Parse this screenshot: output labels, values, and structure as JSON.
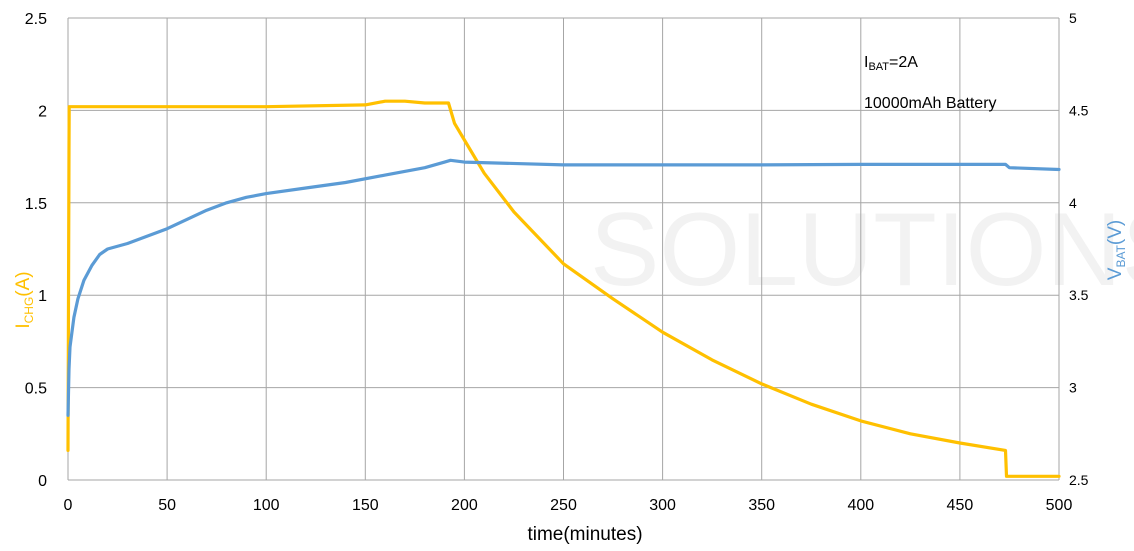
{
  "chart_data": {
    "type": "line",
    "title": "",
    "xlabel": "time(minutes)",
    "xlim": [
      0,
      500
    ],
    "x_ticks": [
      "0",
      "50",
      "100",
      "150",
      "200",
      "250",
      "300",
      "350",
      "400",
      "450",
      "500"
    ],
    "y_left": {
      "label_main": "I",
      "label_sub": "CHG",
      "label_unit": "(A)",
      "color": "#ffc000",
      "lim": [
        0,
        2.5
      ],
      "ticks": [
        "0",
        "0.5",
        "1",
        "1.5",
        "2",
        "2.5"
      ]
    },
    "y_right": {
      "label_main": "V",
      "label_sub": "BAT",
      "label_unit": "(V)",
      "color": "#5b9bd5",
      "lim": [
        2.5,
        5
      ],
      "ticks": [
        "2.5",
        "3",
        "3.5",
        "4",
        "4.5",
        "5"
      ]
    },
    "grid": true,
    "annotations": {
      "line1_main": "I",
      "line1_sub": "BAT",
      "line1_rest": "=2A",
      "line2": "10000mAh Battery"
    },
    "watermark": {
      "text": "SOLUTIONS"
    },
    "series": [
      {
        "axis": "left",
        "color": "#ffc000",
        "x": [
          0,
          0.5,
          0.6,
          1,
          10,
          50,
          100,
          150,
          160,
          170,
          180,
          192,
          195,
          200,
          210,
          225,
          250,
          275,
          300,
          325,
          350,
          375,
          400,
          425,
          450,
          473,
          473.5,
          500
        ],
        "y": [
          0.16,
          1.8,
          2.02,
          2.02,
          2.02,
          2.02,
          2.02,
          2.03,
          2.05,
          2.05,
          2.04,
          2.04,
          1.93,
          1.84,
          1.66,
          1.45,
          1.17,
          0.98,
          0.8,
          0.65,
          0.52,
          0.41,
          0.32,
          0.25,
          0.2,
          0.16,
          0.02,
          0.02
        ]
      },
      {
        "axis": "right",
        "color": "#5b9bd5",
        "x": [
          0,
          0.5,
          1,
          3,
          5,
          8,
          12,
          16,
          20,
          30,
          40,
          50,
          60,
          70,
          80,
          90,
          100,
          120,
          140,
          160,
          180,
          190,
          193,
          200,
          250,
          300,
          350,
          400,
          450,
          473,
          475,
          500
        ],
        "y": [
          2.85,
          3.1,
          3.22,
          3.38,
          3.48,
          3.58,
          3.66,
          3.72,
          3.75,
          3.78,
          3.82,
          3.86,
          3.91,
          3.96,
          4.0,
          4.03,
          4.05,
          4.08,
          4.11,
          4.15,
          4.19,
          4.22,
          4.23,
          4.22,
          4.205,
          4.205,
          4.205,
          4.208,
          4.208,
          4.208,
          4.19,
          4.18
        ]
      }
    ]
  }
}
